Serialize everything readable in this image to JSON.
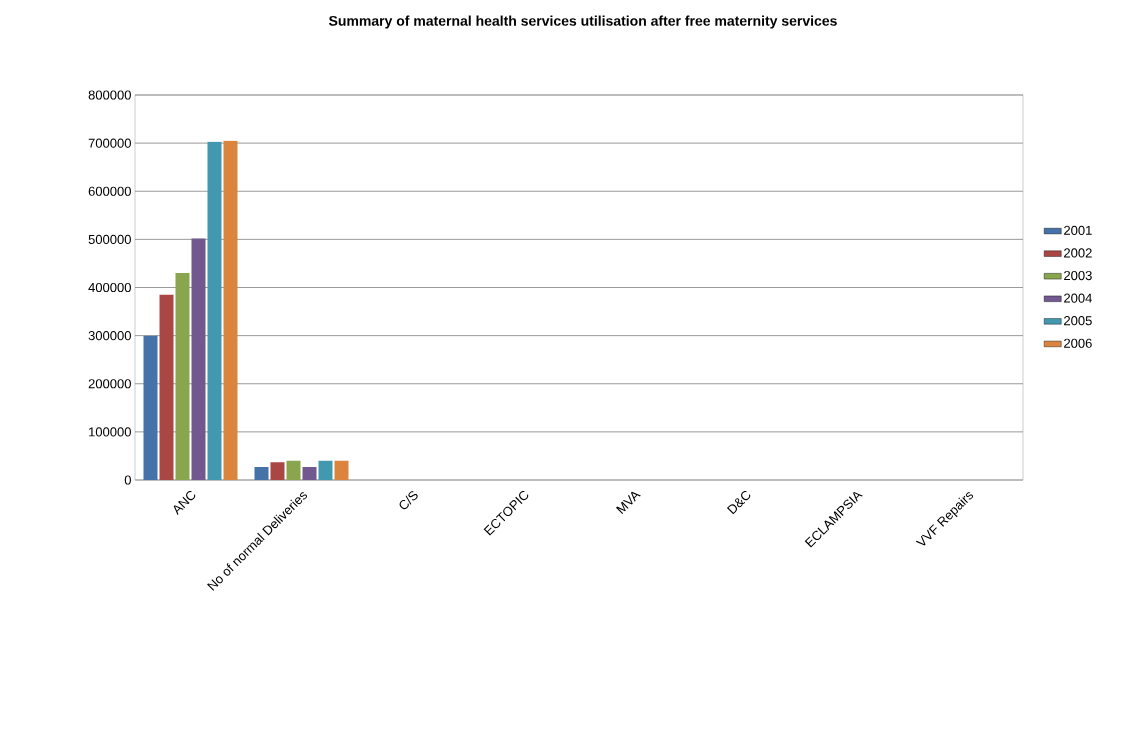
{
  "chart_data": {
    "type": "bar",
    "title": "Summary of maternal health services utilisation after free maternity services",
    "categories": [
      "ANC",
      "No of normal Deliveries",
      "C/S",
      "ECTOPIC",
      "MVA",
      "D&C",
      "ECLAMPSIA",
      "VVF Repairs"
    ],
    "series": [
      {
        "name": "2001",
        "color": "#4572a7",
        "values": [
          300000,
          27000,
          0,
          0,
          0,
          0,
          0,
          0
        ]
      },
      {
        "name": "2002",
        "color": "#aa4643",
        "values": [
          385000,
          37000,
          0,
          0,
          0,
          0,
          0,
          0
        ]
      },
      {
        "name": "2003",
        "color": "#89a54e",
        "values": [
          430000,
          40000,
          0,
          0,
          0,
          0,
          0,
          0
        ]
      },
      {
        "name": "2004",
        "color": "#71588f",
        "values": [
          502000,
          27000,
          0,
          0,
          0,
          0,
          0,
          0
        ]
      },
      {
        "name": "2005",
        "color": "#4198af",
        "values": [
          703000,
          40000,
          0,
          0,
          0,
          0,
          0,
          0
        ]
      },
      {
        "name": "2006",
        "color": "#db843d",
        "values": [
          705000,
          40000,
          0,
          0,
          0,
          0,
          0,
          0
        ]
      }
    ],
    "ylim": [
      0,
      800000
    ],
    "yticks": [
      0,
      100000,
      200000,
      300000,
      400000,
      500000,
      600000,
      700000,
      800000
    ],
    "grid": "y",
    "legend": "right"
  }
}
